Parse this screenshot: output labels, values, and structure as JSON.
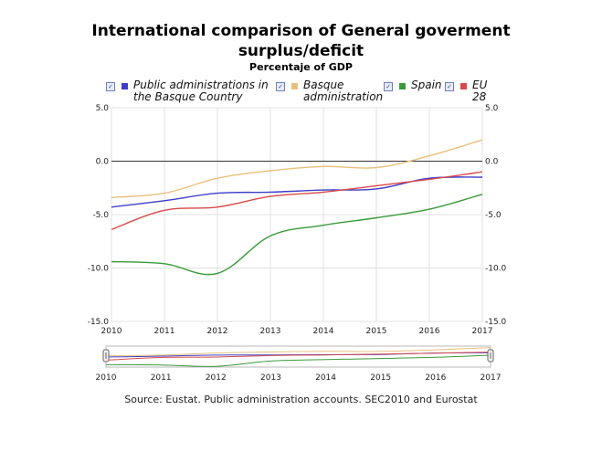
{
  "chart_data": {
    "type": "line",
    "title_line1": "International comparison of General goverment",
    "title_line2": "surplus/deficit",
    "subtitle": "Percentaje of GDP",
    "x": [
      2010,
      2011,
      2012,
      2013,
      2014,
      2015,
      2016,
      2017
    ],
    "x_tick_labels": [
      "2010",
      "2011",
      "2012",
      "2013",
      "2014",
      "2015",
      "2016",
      "2017"
    ],
    "y_tick_labels": [
      "5.0",
      "0.0",
      "-5.0",
      "-10.0",
      "-15.0"
    ],
    "y_ticks": [
      5,
      0,
      -5,
      -10,
      -15
    ],
    "ylim": [
      -15,
      5
    ],
    "grid": true,
    "legend_position": "top",
    "series": [
      {
        "name": "Public administrations in the Basque Country",
        "legend_line1": "Public administrations in",
        "legend_line2": "the Basque Country",
        "color": "#3d3dc8",
        "values": [
          -4.3,
          -3.7,
          -3.0,
          -2.9,
          -2.7,
          -2.6,
          -1.6,
          -1.5
        ]
      },
      {
        "name": "Basque administration",
        "legend_line1": "Basque",
        "legend_line2": "administration",
        "color": "#e8c07d",
        "values": [
          -3.4,
          -3.0,
          -1.6,
          -0.9,
          -0.5,
          -0.6,
          0.5,
          2.0
        ]
      },
      {
        "name": "Spain",
        "legend_line1": "Spain",
        "legend_line2": "",
        "color": "#3a9a3a",
        "values": [
          -9.4,
          -9.6,
          -10.5,
          -7.0,
          -6.0,
          -5.3,
          -4.5,
          -3.1
        ]
      },
      {
        "name": "EU 28",
        "legend_line1": "EU",
        "legend_line2": "28",
        "color": "#d94a4a",
        "values": [
          -6.4,
          -4.6,
          -4.3,
          -3.3,
          -2.9,
          -2.3,
          -1.7,
          -1.0
        ]
      }
    ],
    "source": "Source: Eustat. Public administration accounts. SEC2010 and Eurostat"
  }
}
